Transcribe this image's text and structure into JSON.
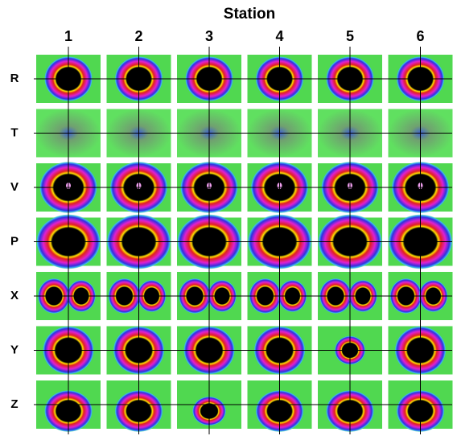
{
  "title": "Station",
  "columns": [
    "1",
    "2",
    "3",
    "4",
    "5",
    "6"
  ],
  "rows": [
    "R",
    "T",
    "V",
    "P",
    "X",
    "Y",
    "Z"
  ]
}
